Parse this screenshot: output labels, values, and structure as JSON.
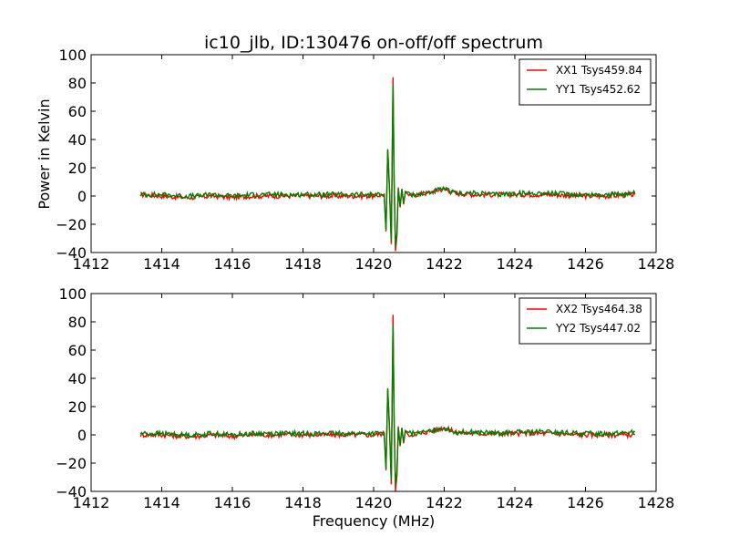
{
  "title": "ic10_jlb, ID:130476 on-off/off spectrum",
  "ylabel": "Power in Kelvin",
  "xlabel": "Frequency (MHz)",
  "chart_data": [
    {
      "type": "line",
      "xlim": [
        1412,
        1428
      ],
      "ylim": [
        -40,
        100
      ],
      "xticks": [
        "1412",
        "1414",
        "1416",
        "1418",
        "1420",
        "1422",
        "1424",
        "1426",
        "1428"
      ],
      "yticks": [
        "−40",
        "−20",
        "0",
        "20",
        "40",
        "60",
        "80",
        "100"
      ],
      "grid": false,
      "legend_position": "top-right",
      "series": [
        {
          "name": "XX1 Tsys459.84",
          "color": "#ff0000",
          "x": [
            1413.4,
            1414.0,
            1414.6,
            1415.0,
            1415.4,
            1416.0,
            1416.6,
            1417.2,
            1417.8,
            1418.4,
            1419.0,
            1419.6,
            1420.0,
            1420.3,
            1420.35,
            1420.4,
            1420.45,
            1420.5,
            1420.55,
            1420.58,
            1420.62,
            1420.66,
            1420.7,
            1420.75,
            1420.8,
            1420.85,
            1420.9,
            1421.0,
            1421.2,
            1421.5,
            1421.8,
            1422.0,
            1422.3,
            1422.8,
            1423.5,
            1424.2,
            1425.0,
            1425.8,
            1426.6,
            1427.4
          ],
          "y": [
            1,
            0,
            -1,
            -1,
            0,
            -1,
            0,
            0,
            0,
            0,
            0,
            0,
            0,
            1,
            -25,
            33,
            5,
            -34,
            84,
            10,
            -39,
            -28,
            6,
            -8,
            5,
            -6,
            3,
            0,
            1,
            2,
            4,
            5,
            2,
            1,
            1,
            1,
            1,
            0,
            0,
            1
          ]
        },
        {
          "name": "YY1 Tsys452.62",
          "color": "#008000",
          "x": [
            1413.4,
            1414.0,
            1414.6,
            1415.0,
            1415.4,
            1416.0,
            1416.6,
            1417.2,
            1417.8,
            1418.4,
            1419.0,
            1419.6,
            1420.0,
            1420.3,
            1420.35,
            1420.4,
            1420.45,
            1420.5,
            1420.55,
            1420.58,
            1420.62,
            1420.66,
            1420.7,
            1420.75,
            1420.8,
            1420.85,
            1420.9,
            1421.0,
            1421.2,
            1421.5,
            1421.8,
            1422.0,
            1422.3,
            1422.8,
            1423.5,
            1424.2,
            1425.0,
            1425.8,
            1426.6,
            1427.4
          ],
          "y": [
            1,
            1,
            0,
            0,
            1,
            0,
            1,
            1,
            1,
            1,
            1,
            1,
            1,
            1,
            -24,
            33,
            6,
            -32,
            79,
            12,
            -36,
            -26,
            5,
            -7,
            5,
            -5,
            3,
            1,
            1,
            2,
            4,
            5,
            2,
            2,
            1,
            2,
            2,
            1,
            1,
            2
          ]
        }
      ]
    },
    {
      "type": "line",
      "xlim": [
        1412,
        1428
      ],
      "ylim": [
        -40,
        100
      ],
      "xticks": [
        "1412",
        "1414",
        "1416",
        "1418",
        "1420",
        "1422",
        "1424",
        "1426",
        "1428"
      ],
      "yticks": [
        "−40",
        "−20",
        "0",
        "20",
        "40",
        "60",
        "80",
        "100"
      ],
      "grid": false,
      "legend_position": "top-right",
      "series": [
        {
          "name": "XX2 Tsys464.38",
          "color": "#ff0000",
          "x": [
            1413.4,
            1414.0,
            1414.6,
            1415.0,
            1415.4,
            1416.0,
            1416.6,
            1417.2,
            1417.8,
            1418.4,
            1419.0,
            1419.6,
            1420.0,
            1420.3,
            1420.35,
            1420.4,
            1420.45,
            1420.5,
            1420.55,
            1420.58,
            1420.62,
            1420.66,
            1420.7,
            1420.75,
            1420.8,
            1420.85,
            1420.9,
            1421.0,
            1421.2,
            1421.5,
            1421.8,
            1422.0,
            1422.3,
            1422.8,
            1423.5,
            1424.2,
            1425.0,
            1425.8,
            1426.6,
            1427.4
          ],
          "y": [
            0,
            0,
            -1,
            -1,
            0,
            -1,
            0,
            0,
            0,
            0,
            0,
            0,
            0,
            1,
            -25,
            32,
            5,
            -35,
            85,
            10,
            -40,
            -29,
            6,
            -8,
            5,
            -6,
            3,
            0,
            1,
            2,
            4,
            5,
            2,
            1,
            1,
            1,
            1,
            0,
            0,
            0
          ]
        },
        {
          "name": "YY2 Tsys447.02",
          "color": "#008000",
          "x": [
            1413.4,
            1414.0,
            1414.6,
            1415.0,
            1415.4,
            1416.0,
            1416.6,
            1417.2,
            1417.8,
            1418.4,
            1419.0,
            1419.6,
            1420.0,
            1420.3,
            1420.35,
            1420.4,
            1420.45,
            1420.5,
            1420.55,
            1420.58,
            1420.62,
            1420.66,
            1420.7,
            1420.75,
            1420.8,
            1420.85,
            1420.9,
            1421.0,
            1421.2,
            1421.5,
            1421.8,
            1422.0,
            1422.3,
            1422.8,
            1423.5,
            1424.2,
            1425.0,
            1425.8,
            1426.6,
            1427.4
          ],
          "y": [
            1,
            1,
            0,
            0,
            1,
            0,
            1,
            1,
            1,
            1,
            1,
            1,
            1,
            1,
            -24,
            33,
            6,
            -32,
            78,
            12,
            -36,
            -26,
            5,
            -7,
            5,
            -5,
            3,
            1,
            1,
            2,
            4,
            5,
            2,
            2,
            1,
            2,
            2,
            1,
            1,
            2
          ]
        }
      ]
    }
  ]
}
